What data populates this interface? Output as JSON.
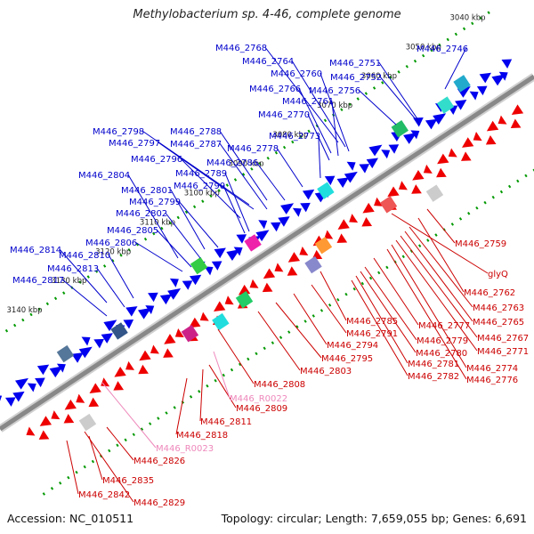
{
  "title": "Methylobacterium sp. 4-46, complete genome",
  "footer": {
    "accession": "Accession: NC_010511",
    "summary": "Topology: circular; Length: 7,659,055 bp; Genes: 6,691"
  },
  "colors": {
    "forward_label": "#0000cc",
    "reverse_label": "#cc0000",
    "rna_label": "#ee88bb",
    "forward_feature": "#0000ee",
    "reverse_feature": "#ee0000",
    "backbone": "#888888",
    "tick": "#009900"
  },
  "ticks": [
    {
      "label": "3040 kbp",
      "t": 0.0
    },
    {
      "label": "3050 kbp",
      "t": 0.0
    },
    {
      "label": "3060 kbp",
      "t": 0.0
    },
    {
      "label": "3070 kbp",
      "t": 0.0
    },
    {
      "label": "3080 kbp",
      "t": 0.0
    },
    {
      "label": "3090 kbp",
      "t": 0.0
    },
    {
      "label": "3100 kbp",
      "t": 0.0
    },
    {
      "label": "3110 kbp",
      "t": 0.0
    },
    {
      "label": "3120 kbp",
      "t": 0.0
    },
    {
      "label": "3130 kbp",
      "t": 0.0
    },
    {
      "label": "3140 kbp",
      "t": 0.0
    }
  ],
  "forward_genes": [
    "M446_2768",
    "M446_2764",
    "M446_2760",
    "M446_2766",
    "M446_2761",
    "M446_2770",
    "M446_2751",
    "M446_2752",
    "M446_2756",
    "M446_2746",
    "M446_2798",
    "M446_2788",
    "M446_2797",
    "M446_2787",
    "M446_2778",
    "M446_2773",
    "M446_2796",
    "M446_2786",
    "M446_2804",
    "M446_2789",
    "M446_2801",
    "M446_2790",
    "M446_2799",
    "M446_2802",
    "M446_2805",
    "M446_2806",
    "M446_2814",
    "M446_2810",
    "M446_2813",
    "M446_2817"
  ],
  "reverse_genes": [
    "M446_2759",
    "glyQ",
    "M446_2762",
    "M446_2763",
    "M446_2765",
    "M446_2785",
    "M446_2777",
    "M446_2767",
    "M446_2791",
    "M446_2779",
    "M446_2771",
    "M446_2794",
    "M446_2780",
    "M446_2774",
    "M446_2795",
    "M446_2781",
    "M446_2782",
    "M446_2776",
    "M446_2803",
    "M446_2808",
    "M446_2809",
    "M446_2811",
    "M446_2818",
    "M446_2826",
    "M446_2835",
    "M446_2842",
    "M446_2829"
  ],
  "rna_genes": [
    "M446_R0022",
    "M446_R0023"
  ]
}
